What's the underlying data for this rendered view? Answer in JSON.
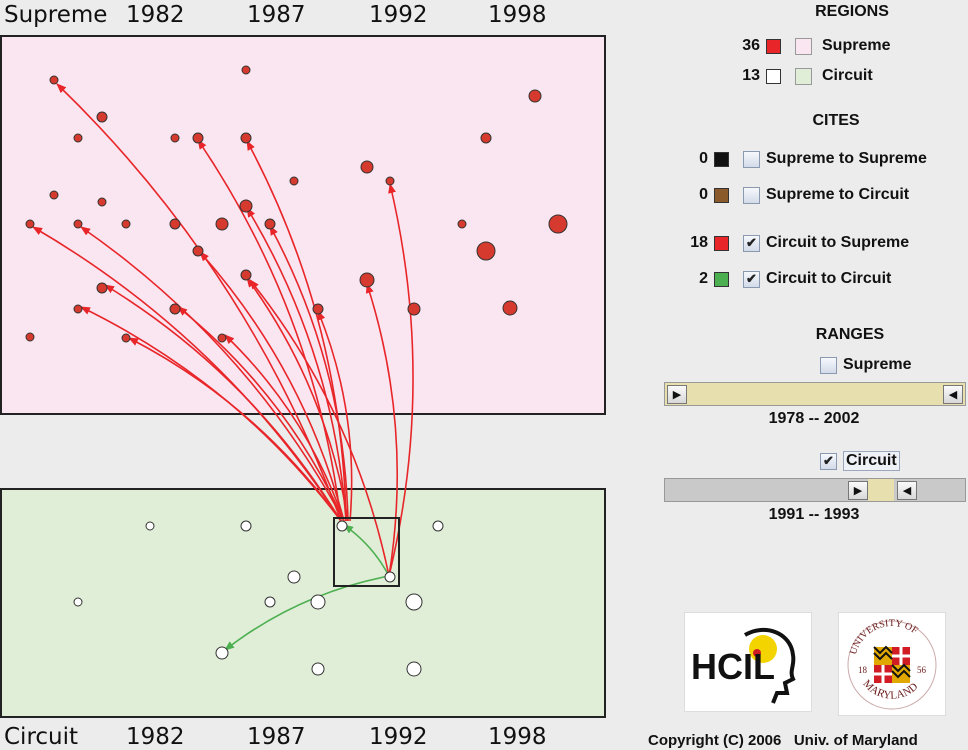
{
  "top_axis": {
    "region": "Supreme",
    "years": [
      "1982",
      "1987",
      "1992",
      "1998"
    ]
  },
  "bottom_axis": {
    "region": "Circuit",
    "years": [
      "1982",
      "1987",
      "1992",
      "1998"
    ]
  },
  "colors": {
    "supreme_bg": "#fae6f0",
    "circuit_bg": "#e0eed8",
    "supreme_node": "#d63a2e",
    "circuit_node": "#ffffff",
    "cite_supreme_supreme": "#111111",
    "cite_supreme_circuit": "#8b5a2b",
    "cite_circuit_supreme": "#e8262a",
    "cite_circuit_circuit": "#4caf50",
    "slider_fill": "#e8dfae",
    "slider_track": "#c9c9c9"
  },
  "regions": {
    "heading": "REGIONS",
    "items": [
      {
        "count": "36",
        "label": "Supreme",
        "swatch": "#e8262a",
        "region_color": "#fae6f0"
      },
      {
        "count": "13",
        "label": "Circuit",
        "swatch": "#ffffff",
        "region_color": "#e0eed8"
      }
    ]
  },
  "cites": {
    "heading": "CITES",
    "items": [
      {
        "count": "0",
        "label": "Supreme to Supreme",
        "swatch": "#111111",
        "checked": false,
        "check_glyph": ""
      },
      {
        "count": "0",
        "label": "Supreme to Circuit",
        "swatch": "#8b5a2b",
        "checked": false,
        "check_glyph": ""
      },
      {
        "count": "18",
        "label": "Circuit to Supreme",
        "swatch": "#e8262a",
        "checked": true,
        "check_glyph": "✔"
      },
      {
        "count": "2",
        "label": "Circuit to Circuit",
        "swatch": "#4caf50",
        "checked": true,
        "check_glyph": "✔"
      }
    ]
  },
  "ranges": {
    "heading": "RANGES",
    "supreme": {
      "label": "Supreme",
      "checked": false,
      "check_glyph": "",
      "range_text": "1978  --  2002",
      "from": 1978,
      "to": 2002
    },
    "circuit": {
      "label": "Circuit",
      "checked": true,
      "check_glyph": "✔",
      "range_text": "1991  --  1993",
      "from": 1991,
      "to": 1993
    }
  },
  "logos": {
    "hcil": "HCIL",
    "umd_top": "UNIVERSITY OF",
    "umd_bottom": "MARYLAND",
    "umd_left": "18",
    "umd_right": "56"
  },
  "copyright": "Copyright (C) 2006   Univ. of Maryland",
  "icons": {
    "slider_left": "triangle-right-icon",
    "slider_right": "triangle-left-icon",
    "check": "checkmark-icon"
  }
}
